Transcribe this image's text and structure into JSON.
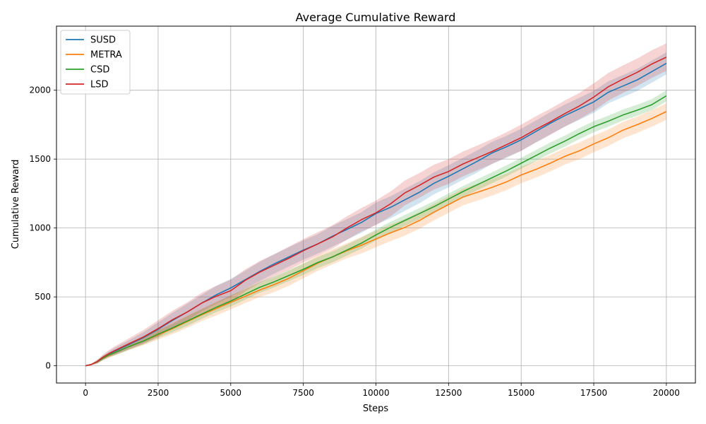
{
  "chart_data": {
    "type": "line",
    "title": "Average Cumulative Reward",
    "xlabel": "Steps",
    "ylabel": "Cumulative Reward",
    "xlim": [
      -1000,
      21000
    ],
    "ylim": [
      -125,
      2465
    ],
    "xticks": [
      0,
      2500,
      5000,
      7500,
      10000,
      12500,
      15000,
      17500,
      20000
    ],
    "xtick_labels": [
      "0",
      "2500",
      "5000",
      "7500",
      "10000",
      "12500",
      "15000",
      "17500",
      "20000"
    ],
    "yticks": [
      0,
      500,
      1000,
      1500,
      2000
    ],
    "ytick_labels": [
      "0",
      "500",
      "1000",
      "1500",
      "2000"
    ],
    "grid": true,
    "legend_position": "top-left",
    "series": [
      {
        "name": "SUSD",
        "color": "#1f77b4",
        "x": [
          0,
          200,
          400,
          600,
          800,
          1000,
          1500,
          2000,
          2500,
          3000,
          3500,
          4000,
          4500,
          5000,
          5500,
          6000,
          6500,
          7000,
          7500,
          8000,
          8500,
          9000,
          9500,
          10000,
          10500,
          11000,
          11500,
          12000,
          12500,
          13000,
          13500,
          14000,
          14500,
          15000,
          15500,
          16000,
          16500,
          17000,
          17500,
          18000,
          18500,
          19000,
          19500,
          20000
        ],
        "y": [
          0,
          10,
          30,
          60,
          85,
          105,
          155,
          205,
          265,
          330,
          390,
          455,
          515,
          565,
          625,
          685,
          740,
          790,
          840,
          885,
          940,
          990,
          1040,
          1105,
          1150,
          1205,
          1260,
          1325,
          1375,
          1430,
          1485,
          1545,
          1590,
          1640,
          1700,
          1760,
          1815,
          1865,
          1915,
          1985,
          2030,
          2075,
          2135,
          2195
        ],
        "band": [
          0,
          5,
          10,
          15,
          20,
          25,
          30,
          40,
          50,
          55,
          60,
          60,
          65,
          65,
          65,
          70,
          70,
          70,
          70,
          70,
          75,
          75,
          75,
          80,
          80,
          80,
          80,
          80,
          80,
          80,
          80,
          80,
          80,
          80,
          80,
          80,
          80,
          80,
          80,
          80,
          80,
          80,
          80,
          80
        ]
      },
      {
        "name": "METRA",
        "color": "#ff7f0e",
        "x": [
          0,
          200,
          400,
          600,
          800,
          1000,
          1500,
          2000,
          2500,
          3000,
          3500,
          4000,
          4500,
          5000,
          5500,
          6000,
          6500,
          7000,
          7500,
          8000,
          8500,
          9000,
          9500,
          10000,
          10500,
          11000,
          11500,
          12000,
          12500,
          13000,
          13500,
          14000,
          14500,
          15000,
          15500,
          16000,
          16500,
          17000,
          17500,
          18000,
          18500,
          19000,
          19500,
          20000
        ],
        "y": [
          0,
          10,
          28,
          55,
          75,
          95,
          140,
          180,
          225,
          270,
          320,
          370,
          415,
          460,
          505,
          550,
          590,
          635,
          690,
          745,
          790,
          835,
          875,
          920,
          965,
          1005,
          1055,
          1115,
          1170,
          1225,
          1260,
          1295,
          1335,
          1385,
          1425,
          1470,
          1520,
          1560,
          1610,
          1655,
          1710,
          1750,
          1795,
          1845
        ],
        "band": [
          0,
          5,
          10,
          15,
          20,
          20,
          25,
          30,
          35,
          40,
          45,
          45,
          50,
          50,
          50,
          50,
          55,
          55,
          55,
          55,
          55,
          55,
          60,
          60,
          60,
          60,
          60,
          60,
          60,
          60,
          60,
          60,
          60,
          60,
          60,
          60,
          60,
          60,
          60,
          60,
          60,
          60,
          60,
          60
        ]
      },
      {
        "name": "CSD",
        "color": "#2ca02c",
        "x": [
          0,
          200,
          400,
          600,
          800,
          1000,
          1500,
          2000,
          2500,
          3000,
          3500,
          4000,
          4500,
          5000,
          5500,
          6000,
          6500,
          7000,
          7500,
          8000,
          8500,
          9000,
          9500,
          10000,
          10500,
          11000,
          11500,
          12000,
          12500,
          13000,
          13500,
          14000,
          14500,
          15000,
          15500,
          16000,
          16500,
          17000,
          17500,
          18000,
          18500,
          19000,
          19500,
          20000
        ],
        "y": [
          0,
          10,
          28,
          55,
          78,
          95,
          140,
          180,
          230,
          275,
          325,
          375,
          425,
          470,
          520,
          570,
          610,
          655,
          700,
          750,
          790,
          840,
          890,
          950,
          1005,
          1055,
          1105,
          1155,
          1210,
          1265,
          1315,
          1365,
          1415,
          1470,
          1525,
          1580,
          1630,
          1685,
          1735,
          1775,
          1820,
          1855,
          1895,
          1960
        ],
        "band": [
          0,
          5,
          10,
          15,
          15,
          20,
          25,
          25,
          30,
          30,
          35,
          35,
          35,
          40,
          40,
          40,
          40,
          40,
          40,
          40,
          40,
          40,
          40,
          40,
          40,
          40,
          40,
          40,
          40,
          40,
          40,
          40,
          40,
          40,
          40,
          40,
          40,
          40,
          40,
          40,
          40,
          40,
          40,
          40
        ]
      },
      {
        "name": "LSD",
        "color": "#d62728",
        "x": [
          0,
          200,
          400,
          600,
          800,
          1000,
          1500,
          2000,
          2500,
          3000,
          3500,
          4000,
          4500,
          5000,
          5500,
          6000,
          6500,
          7000,
          7500,
          8000,
          8500,
          9000,
          9500,
          10000,
          10500,
          11000,
          11500,
          12000,
          12500,
          13000,
          13500,
          14000,
          14500,
          15000,
          15500,
          16000,
          16500,
          17000,
          17500,
          18000,
          18500,
          19000,
          19500,
          20000
        ],
        "y": [
          0,
          10,
          30,
          62,
          88,
          110,
          160,
          210,
          270,
          335,
          390,
          455,
          505,
          545,
          620,
          680,
          730,
          780,
          835,
          885,
          935,
          1000,
          1060,
          1110,
          1175,
          1255,
          1310,
          1370,
          1410,
          1465,
          1510,
          1555,
          1605,
          1655,
          1715,
          1770,
          1830,
          1885,
          1950,
          2025,
          2080,
          2130,
          2190,
          2240
        ],
        "band": [
          0,
          5,
          15,
          20,
          25,
          30,
          40,
          50,
          60,
          65,
          70,
          75,
          75,
          80,
          80,
          80,
          80,
          85,
          85,
          85,
          85,
          85,
          85,
          90,
          90,
          90,
          90,
          90,
          90,
          90,
          90,
          90,
          90,
          95,
          95,
          95,
          95,
          95,
          100,
          100,
          100,
          100,
          100,
          100
        ]
      }
    ]
  }
}
